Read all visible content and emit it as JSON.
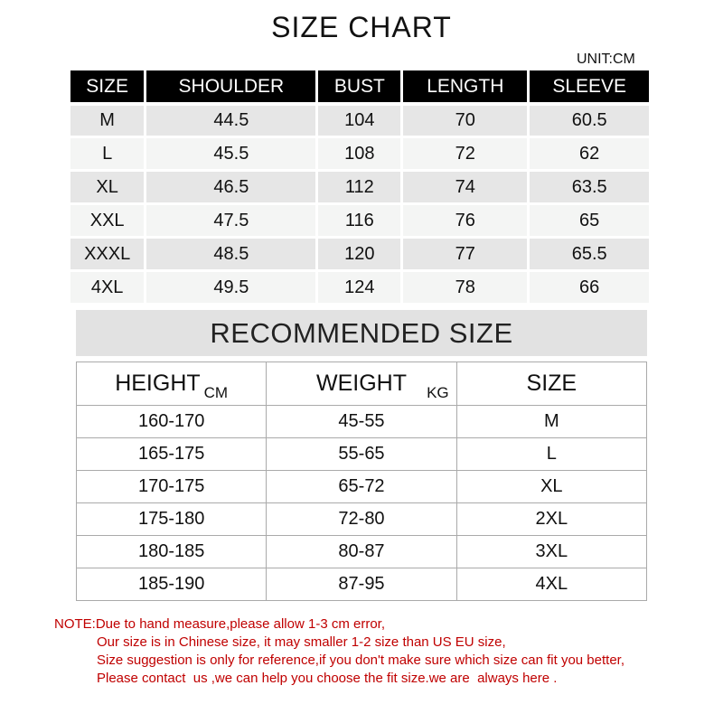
{
  "title": "SIZE CHART",
  "unit": "UNIT:CM",
  "size_table": {
    "headers": [
      "SIZE",
      "SHOULDER",
      "BUST",
      "LENGTH",
      "SLEEVE"
    ],
    "rows": [
      [
        "M",
        "44.5",
        "104",
        "70",
        "60.5"
      ],
      [
        "L",
        "45.5",
        "108",
        "72",
        "62"
      ],
      [
        "XL",
        "46.5",
        "112",
        "74",
        "63.5"
      ],
      [
        "XXL",
        "47.5",
        "116",
        "76",
        "65"
      ],
      [
        "XXXL",
        "48.5",
        "120",
        "77",
        "65.5"
      ],
      [
        "4XL",
        "49.5",
        "124",
        "78",
        "66"
      ]
    ]
  },
  "recommended": {
    "title": "RECOMMENDED SIZE",
    "headers": {
      "height": "HEIGHT",
      "height_unit": "CM",
      "weight": "WEIGHT",
      "weight_unit": "KG",
      "size": "SIZE"
    },
    "rows": [
      [
        "160-170",
        "45-55",
        "M"
      ],
      [
        "165-175",
        "55-65",
        "L"
      ],
      [
        "170-175",
        "65-72",
        "XL"
      ],
      [
        "175-180",
        "72-80",
        "2XL"
      ],
      [
        "180-185",
        "80-87",
        "3XL"
      ],
      [
        "185-190",
        "87-95",
        "4XL"
      ]
    ]
  },
  "note": [
    "NOTE:Due to hand measure,please allow 1-3 cm error,",
    "Our size is in Chinese size, it may smaller 1-2 size than US EU size,",
    "Size suggestion is only for reference,if you don't make sure which size can fit you better,",
    "Please contact  us ,we can help you choose the fit size.we are  always here ."
  ],
  "colors": {
    "note": "#c00000",
    "header_bg": "#000000"
  }
}
